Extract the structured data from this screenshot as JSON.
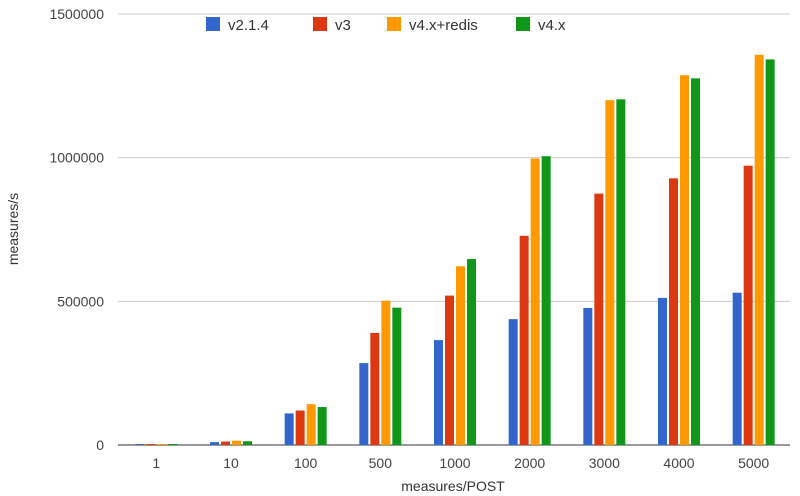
{
  "chart_data": {
    "type": "bar",
    "title": "",
    "xlabel": "measures/POST",
    "ylabel": "measures/s",
    "ylim": [
      0,
      1500000
    ],
    "yticks": [
      0,
      500000,
      1000000,
      1500000
    ],
    "grid": true,
    "legend_position": "top",
    "categories": [
      "1",
      "10",
      "100",
      "500",
      "1000",
      "2000",
      "3000",
      "4000",
      "5000"
    ],
    "series": [
      {
        "name": "v2.1.4",
        "color": "#3366cc",
        "values": [
          500,
          10000,
          110000,
          285000,
          365000,
          438000,
          477000,
          512000,
          530000
        ]
      },
      {
        "name": "v3",
        "color": "#dc3912",
        "values": [
          600,
          12000,
          120000,
          390000,
          520000,
          728000,
          875000,
          928000,
          972000
        ]
      },
      {
        "name": "v4.x+redis",
        "color": "#ff9900",
        "values": [
          700,
          15000,
          142000,
          502000,
          622000,
          997000,
          1200000,
          1287000,
          1358000
        ]
      },
      {
        "name": "v4.x",
        "color": "#109618",
        "values": [
          700,
          13000,
          132000,
          478000,
          647000,
          1005000,
          1203000,
          1276000,
          1342000
        ]
      }
    ]
  }
}
